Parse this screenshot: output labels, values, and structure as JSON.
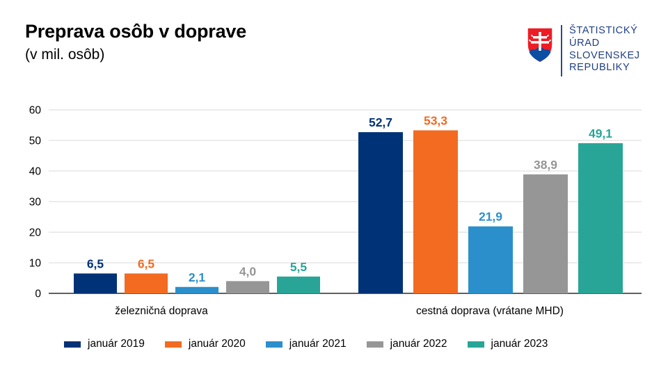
{
  "header": {
    "title": "Preprava osôb v doprave",
    "subtitle": "(v mil. osôb)"
  },
  "logo": {
    "emblem": "slovak-coat-of-arms-icon",
    "lines": [
      "ŠTATISTICKÝ",
      "ÚRAD",
      "SLOVENSKEJ",
      "REPUBLIKY"
    ],
    "text_color": "#1f3f86"
  },
  "chart_data": {
    "type": "bar",
    "categories": [
      "železničná doprava",
      "cestná doprava (vrátane MHD)"
    ],
    "series": [
      {
        "name": "január 2019",
        "color": "#003277",
        "values": [
          6.5,
          52.7
        ],
        "labels": [
          "6,5",
          "52,7"
        ]
      },
      {
        "name": "január 2020",
        "color": "#f26b21",
        "values": [
          6.5,
          53.3
        ],
        "labels": [
          "6,5",
          "53,3"
        ]
      },
      {
        "name": "január 2021",
        "color": "#2b8fcb",
        "values": [
          2.1,
          21.9
        ],
        "labels": [
          "2,1",
          "21,9"
        ]
      },
      {
        "name": "január 2022",
        "color": "#969696",
        "values": [
          4.0,
          38.9
        ],
        "labels": [
          "4,0",
          "38,9"
        ]
      },
      {
        "name": "január 2023",
        "color": "#28a597",
        "values": [
          5.5,
          49.1
        ],
        "labels": [
          "5,5",
          "49,1"
        ]
      }
    ],
    "ylim": [
      0,
      60
    ],
    "yticks": [
      "0",
      "10",
      "20",
      "30",
      "40",
      "50",
      "60"
    ],
    "grid": true,
    "legend_position": "bottom"
  }
}
